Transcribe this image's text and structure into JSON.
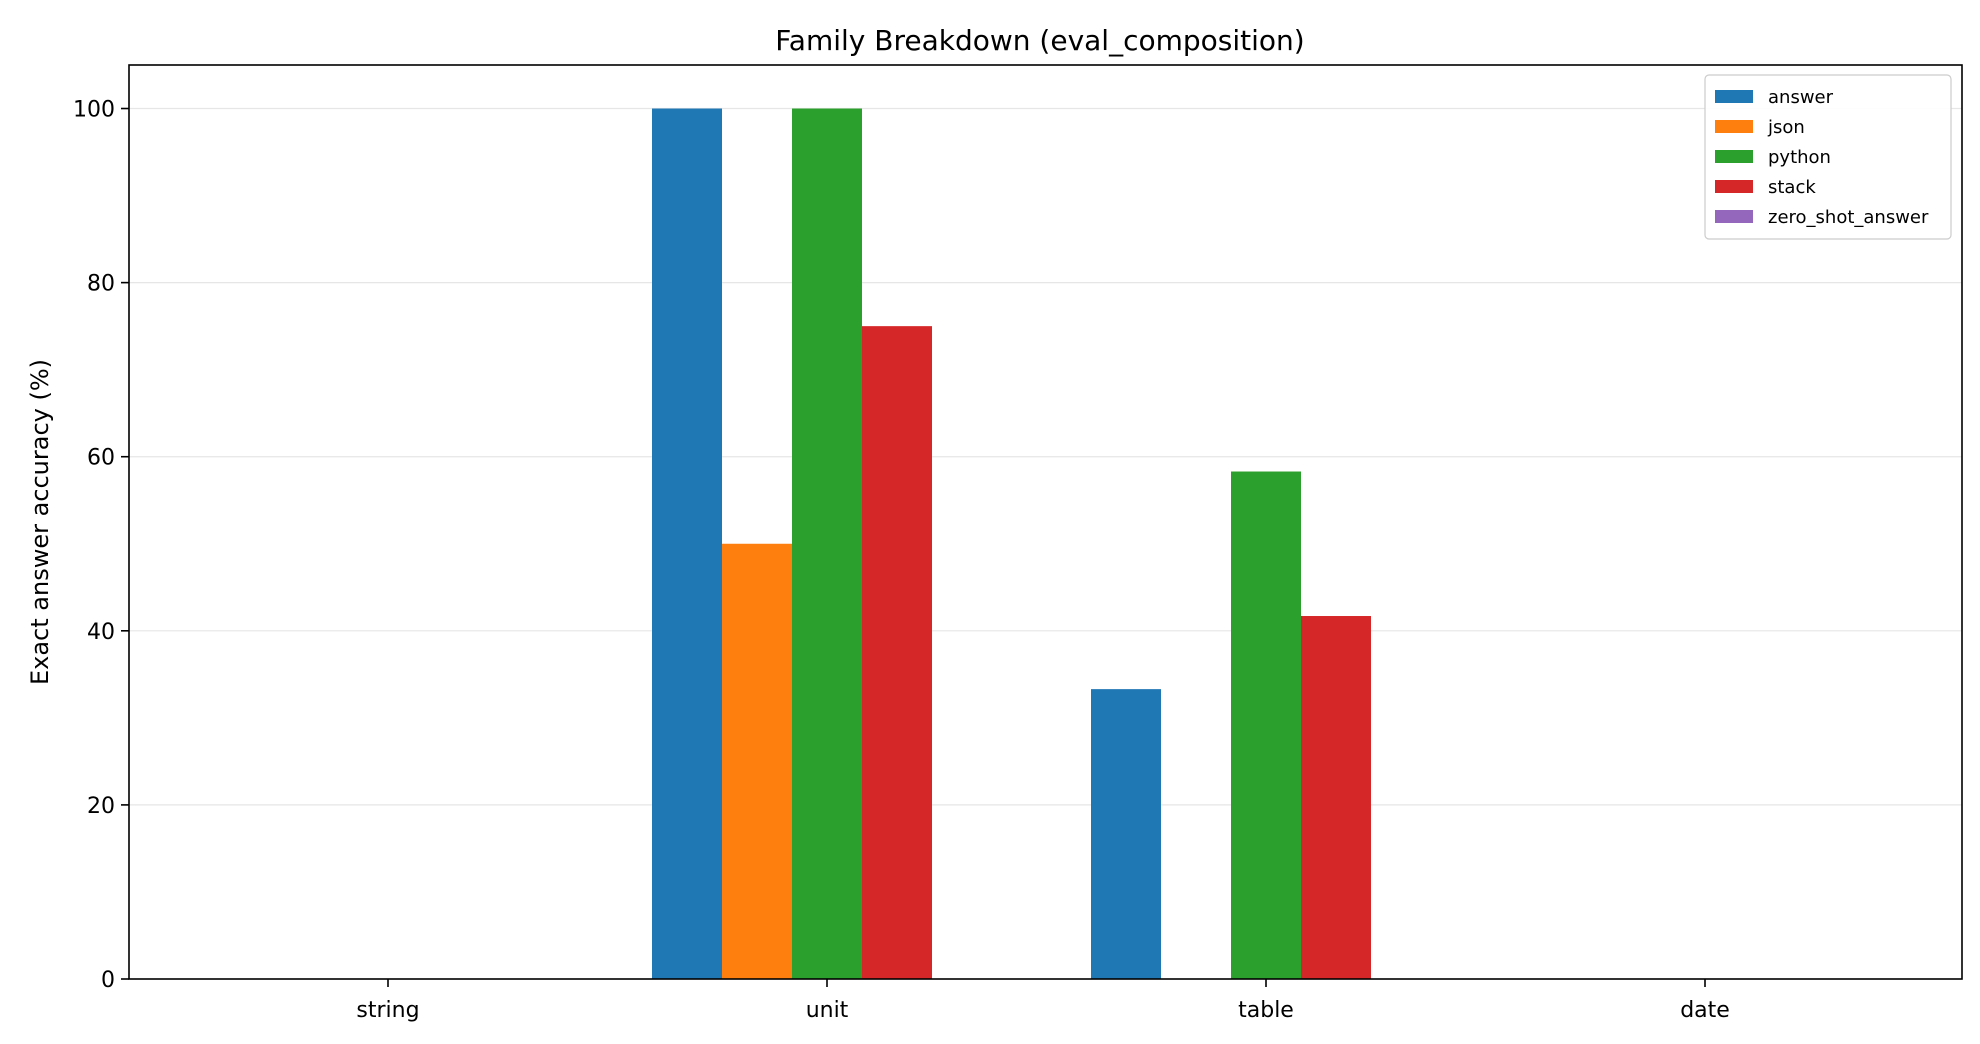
{
  "chart_data": {
    "type": "bar",
    "title": "Family Breakdown (eval_composition)",
    "xlabel": "",
    "ylabel": "Exact answer accuracy (%)",
    "categories": [
      "string",
      "unit",
      "table",
      "date"
    ],
    "ylim": [
      0,
      105
    ],
    "yticks": [
      0,
      20,
      40,
      60,
      80,
      100
    ],
    "grid": "horizontal",
    "legend_position": "top-right",
    "series": [
      {
        "name": "answer",
        "color": "#1f77b4",
        "values": [
          0,
          100,
          33.3,
          0
        ]
      },
      {
        "name": "json",
        "color": "#ff7f0e",
        "values": [
          0,
          50,
          0,
          0
        ]
      },
      {
        "name": "python",
        "color": "#2ca02c",
        "values": [
          0,
          100,
          58.3,
          0
        ]
      },
      {
        "name": "stack",
        "color": "#d62728",
        "values": [
          0,
          75,
          41.7,
          0
        ]
      },
      {
        "name": "zero_shot_answer",
        "color": "#9467bd",
        "values": [
          0,
          0,
          0,
          0
        ]
      }
    ]
  }
}
